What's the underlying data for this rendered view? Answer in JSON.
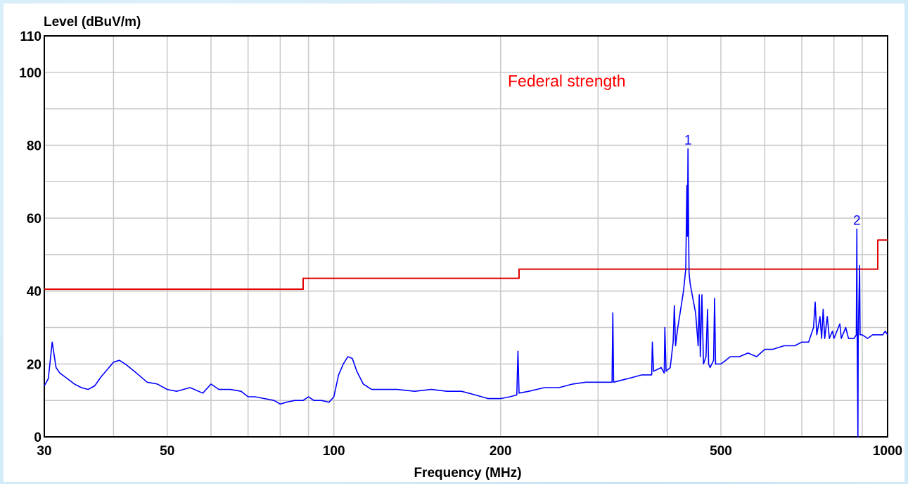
{
  "chart_data": {
    "type": "line",
    "title": "",
    "ylabel": "Level (dBuV/m)",
    "xlabel": "Frequency (MHz)",
    "x_scale": "log",
    "xlim": [
      30,
      1000
    ],
    "ylim": [
      0,
      110
    ],
    "x_ticks": [
      30,
      50,
      100,
      200,
      500,
      1000
    ],
    "x_grid": [
      30,
      40,
      50,
      60,
      70,
      80,
      90,
      100,
      200,
      300,
      400,
      500,
      600,
      700,
      800,
      900,
      1000
    ],
    "y_ticks": [
      0,
      20,
      40,
      60,
      80,
      100,
      110
    ],
    "y_grid": [
      10,
      20,
      30,
      40,
      50,
      60,
      70,
      80,
      90,
      100
    ],
    "grid": true,
    "legend": [
      {
        "text": "Federal strength",
        "color": "#ff0000",
        "placement": "top-center"
      }
    ],
    "series": [
      {
        "name": "Federal strength",
        "type": "limit",
        "color": "#e00000",
        "points": [
          [
            30,
            40.5
          ],
          [
            88,
            40.5
          ],
          [
            88,
            43.5
          ],
          [
            216,
            43.5
          ],
          [
            216,
            46
          ],
          [
            960,
            46
          ],
          [
            960,
            54
          ],
          [
            1000,
            54
          ]
        ]
      },
      {
        "type": "measurement",
        "color": "#0000ff",
        "points": [
          [
            30,
            14
          ],
          [
            30.5,
            16
          ],
          [
            31,
            26
          ],
          [
            31.5,
            19
          ],
          [
            32,
            17.5
          ],
          [
            33,
            16
          ],
          [
            34,
            14.5
          ],
          [
            35,
            13.5
          ],
          [
            36,
            13
          ],
          [
            37,
            14
          ],
          [
            38,
            16.5
          ],
          [
            39,
            18.5
          ],
          [
            40,
            20.5
          ],
          [
            41,
            21
          ],
          [
            42,
            20
          ],
          [
            44,
            17.5
          ],
          [
            46,
            15
          ],
          [
            48,
            14.5
          ],
          [
            50,
            13
          ],
          [
            52,
            12.5
          ],
          [
            55,
            13.5
          ],
          [
            58,
            12
          ],
          [
            60,
            14.5
          ],
          [
            62,
            13
          ],
          [
            65,
            13
          ],
          [
            68,
            12.5
          ],
          [
            70,
            11
          ],
          [
            72,
            11
          ],
          [
            75,
            10.5
          ],
          [
            78,
            10
          ],
          [
            80,
            9
          ],
          [
            82,
            9.5
          ],
          [
            85,
            10
          ],
          [
            88,
            10
          ],
          [
            90,
            11
          ],
          [
            92,
            10
          ],
          [
            95,
            10
          ],
          [
            98,
            9.5
          ],
          [
            100,
            11
          ],
          [
            102,
            17
          ],
          [
            104,
            20
          ],
          [
            106,
            22
          ],
          [
            108,
            21.5
          ],
          [
            110,
            18
          ],
          [
            113,
            14.5
          ],
          [
            117,
            13
          ],
          [
            120,
            13
          ],
          [
            130,
            13
          ],
          [
            140,
            12.5
          ],
          [
            150,
            13
          ],
          [
            160,
            12.5
          ],
          [
            170,
            12.5
          ],
          [
            180,
            11.5
          ],
          [
            190,
            10.5
          ],
          [
            200,
            10.5
          ],
          [
            208,
            11
          ],
          [
            214,
            11.5
          ],
          [
            215,
            23.5
          ],
          [
            216,
            12
          ],
          [
            225,
            12.5
          ],
          [
            240,
            13.5
          ],
          [
            255,
            13.5
          ],
          [
            270,
            14.5
          ],
          [
            285,
            15
          ],
          [
            300,
            15
          ],
          [
            318,
            15
          ],
          [
            319,
            34
          ],
          [
            320,
            15
          ],
          [
            340,
            16
          ],
          [
            360,
            17
          ],
          [
            375,
            17
          ],
          [
            376,
            26
          ],
          [
            378,
            18
          ],
          [
            390,
            19
          ],
          [
            395,
            17.5
          ],
          [
            396,
            30
          ],
          [
            398,
            18
          ],
          [
            405,
            19
          ],
          [
            410,
            26
          ],
          [
            412,
            36
          ],
          [
            414,
            25
          ],
          [
            418,
            30
          ],
          [
            422,
            34
          ],
          [
            428,
            40
          ],
          [
            432,
            46
          ],
          [
            434,
            69
          ],
          [
            435,
            55
          ],
          [
            436,
            79
          ],
          [
            437,
            60
          ],
          [
            438,
            45
          ],
          [
            440,
            42
          ],
          [
            445,
            38
          ],
          [
            450,
            34
          ],
          [
            455,
            25
          ],
          [
            457,
            39
          ],
          [
            459,
            22
          ],
          [
            462,
            39
          ],
          [
            465,
            20
          ],
          [
            470,
            22
          ],
          [
            473,
            35
          ],
          [
            475,
            20
          ],
          [
            478,
            19
          ],
          [
            485,
            21
          ],
          [
            487,
            38
          ],
          [
            489,
            20
          ],
          [
            495,
            20
          ],
          [
            500,
            20
          ],
          [
            510,
            21
          ],
          [
            520,
            22
          ],
          [
            540,
            22
          ],
          [
            560,
            23
          ],
          [
            580,
            22
          ],
          [
            600,
            24
          ],
          [
            620,
            24
          ],
          [
            650,
            25
          ],
          [
            680,
            25
          ],
          [
            700,
            26
          ],
          [
            720,
            26
          ],
          [
            735,
            30
          ],
          [
            740,
            37
          ],
          [
            745,
            28
          ],
          [
            755,
            33
          ],
          [
            760,
            27
          ],
          [
            765,
            35
          ],
          [
            770,
            27
          ],
          [
            778,
            33
          ],
          [
            785,
            27
          ],
          [
            795,
            29
          ],
          [
            800,
            27
          ],
          [
            820,
            31
          ],
          [
            825,
            27
          ],
          [
            840,
            30
          ],
          [
            850,
            27
          ],
          [
            870,
            27
          ],
          [
            878,
            28
          ],
          [
            880,
            57
          ],
          [
            881,
            28
          ],
          [
            884,
            0
          ],
          [
            885,
            27
          ],
          [
            890,
            47
          ],
          [
            892,
            28
          ],
          [
            900,
            28
          ],
          [
            920,
            27
          ],
          [
            940,
            28
          ],
          [
            960,
            28
          ],
          [
            980,
            28
          ],
          [
            990,
            29
          ],
          [
            1000,
            28
          ]
        ]
      }
    ],
    "annotations": [
      {
        "text": "1",
        "x": 436,
        "y": 79,
        "color": "#0000ff"
      },
      {
        "text": "2",
        "x": 880,
        "y": 57,
        "color": "#0000ff"
      }
    ]
  }
}
